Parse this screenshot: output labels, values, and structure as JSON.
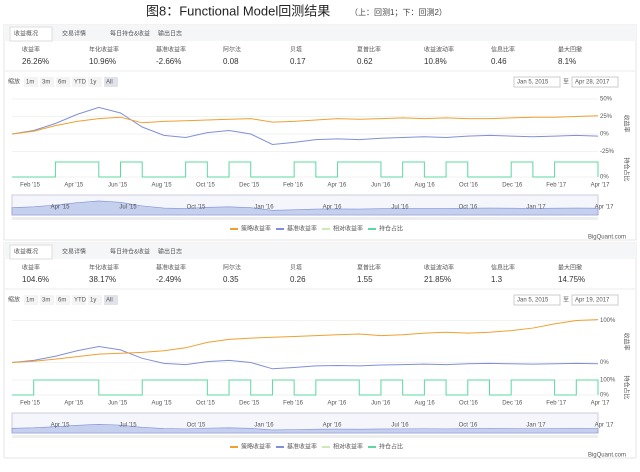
{
  "title": "图8：Functional Model回测结果",
  "subtitle": "（上：回测1；下：回测2）",
  "legend": [
    {
      "name": "策略收益率",
      "color": "#f0a030"
    },
    {
      "name": "基准收益率",
      "color": "#8090d8"
    },
    {
      "name": "相对收益率",
      "color": "#cfe8b8"
    },
    {
      "name": "持仓占比",
      "color": "#5cd8a0"
    }
  ],
  "panels": [
    {
      "tabs": [
        "收益概况",
        "交易详情",
        "每日持仓&收益",
        "输出日志"
      ],
      "stats": [
        {
          "label": "收益率",
          "value": "26.26%"
        },
        {
          "label": "年化收益率",
          "value": "10.96%"
        },
        {
          "label": "基准收益率",
          "value": "-2.66%"
        },
        {
          "label": "阿尔法",
          "value": "0.08"
        },
        {
          "label": "贝塔",
          "value": "0.17"
        },
        {
          "label": "夏普比率",
          "value": "0.62"
        },
        {
          "label": "收益波动率",
          "value": "10.8%"
        },
        {
          "label": "信息比率",
          "value": "0.46"
        },
        {
          "label": "最大回撤",
          "value": "8.1%"
        }
      ],
      "zoom_label": "缩放",
      "ranges": [
        "1m",
        "3m",
        "6m",
        "YTD",
        "1y",
        "All"
      ],
      "date_from": "Jan 5, 2015",
      "date_sep": "至",
      "date_to": "Apr 28, 2017",
      "ylim": [
        -30,
        60
      ],
      "yticks": [
        {
          "value": 50,
          "label": "50%"
        },
        {
          "value": 25,
          "label": "25%"
        },
        {
          "value": 0,
          "label": "0%"
        },
        {
          "value": -25,
          "label": "-25%"
        }
      ],
      "y_title": "收益率",
      "pos_title": "持仓占比",
      "pos_ylim": [
        0,
        100
      ],
      "pos_yticks": [
        {
          "value": 0,
          "label": "0%"
        }
      ],
      "strategy": [
        0,
        4,
        12,
        18,
        22,
        24,
        16,
        18,
        19,
        20,
        21,
        22,
        17,
        18,
        20,
        22,
        21,
        22,
        23,
        22,
        23,
        22,
        22,
        23,
        24,
        24,
        25,
        26
      ],
      "benchmark": [
        0,
        5,
        15,
        28,
        38,
        30,
        10,
        -2,
        -5,
        2,
        5,
        0,
        -15,
        -12,
        -8,
        -7,
        -8,
        -6,
        -5,
        -4,
        -5,
        -3,
        -2,
        -3,
        -4,
        -3,
        -2,
        -3
      ],
      "position": [
        0,
        0,
        100,
        100,
        0,
        100,
        0,
        0,
        100,
        0,
        100,
        0,
        0,
        100,
        0,
        100,
        100,
        0,
        100,
        0,
        100,
        0,
        0,
        100,
        0,
        100,
        100,
        0
      ],
      "xlabels": [
        "Feb '15",
        "Apr '15",
        "Jun '15",
        "Aug '15",
        "Oct '15",
        "Dec '15",
        "Feb '16",
        "Apr '16",
        "Jun '16",
        "Aug '16",
        "Oct '16",
        "Dec '16",
        "Feb '17",
        "Apr '17"
      ],
      "nav_labels": [
        "Apr '15",
        "Jul '15",
        "Oct '15",
        "Jan '16",
        "Apr '16",
        "Jul '16",
        "Oct '16",
        "Jan '17",
        "Apr '17"
      ],
      "credit": "BigQuant.com"
    },
    {
      "tabs": [
        "收益概况",
        "交易详情",
        "每日持仓&收益",
        "输出日志"
      ],
      "stats": [
        {
          "label": "收益率",
          "value": "104.6%"
        },
        {
          "label": "年化收益率",
          "value": "38.17%"
        },
        {
          "label": "基准收益率",
          "value": "-2.49%"
        },
        {
          "label": "阿尔法",
          "value": "0.35"
        },
        {
          "label": "贝塔",
          "value": "0.26"
        },
        {
          "label": "夏普比率",
          "value": "1.55"
        },
        {
          "label": "收益波动率",
          "value": "21.85%"
        },
        {
          "label": "信息比率",
          "value": "1.3"
        },
        {
          "label": "最大回撤",
          "value": "14.75%"
        }
      ],
      "zoom_label": "缩放",
      "ranges": [
        "1m",
        "3m",
        "6m",
        "YTD",
        "1y",
        "All"
      ],
      "date_from": "Jan 5, 2015",
      "date_sep": "至",
      "date_to": "Apr 19, 2017",
      "ylim": [
        -25,
        125
      ],
      "yticks": [
        {
          "value": 100,
          "label": "100%"
        },
        {
          "value": 0,
          "label": "0%"
        }
      ],
      "y_title": "收益率",
      "pos_title": "持仓占比",
      "pos_ylim": [
        0,
        100
      ],
      "pos_yticks": [
        {
          "value": 100,
          "label": "100%"
        },
        {
          "value": 0,
          "label": "0%"
        }
      ],
      "strategy": [
        0,
        3,
        8,
        14,
        20,
        22,
        24,
        28,
        35,
        48,
        55,
        58,
        60,
        62,
        64,
        66,
        68,
        64,
        66,
        70,
        72,
        70,
        72,
        76,
        82,
        92,
        100,
        102
      ],
      "benchmark": [
        0,
        5,
        15,
        28,
        38,
        30,
        10,
        -2,
        -5,
        2,
        5,
        0,
        -15,
        -12,
        -8,
        -7,
        -8,
        -6,
        -5,
        -4,
        -5,
        -3,
        -2,
        -3,
        -4,
        -3,
        -2,
        -3
      ],
      "position": [
        0,
        100,
        100,
        100,
        0,
        0,
        100,
        100,
        100,
        0,
        100,
        0,
        100,
        0,
        100,
        100,
        0,
        100,
        0,
        100,
        0,
        100,
        0,
        100,
        100,
        0,
        100,
        0
      ],
      "xlabels": [
        "Feb '15",
        "Apr '15",
        "Jun '15",
        "Aug '15",
        "Oct '15",
        "Dec '15",
        "Feb '16",
        "Apr '16",
        "Jun '16",
        "Aug '16",
        "Oct '16",
        "Dec '16",
        "Feb '17",
        "Apr '17"
      ],
      "nav_labels": [
        "Apr '15",
        "Jul '15",
        "Oct '15",
        "Jan '16",
        "Apr '16",
        "Jul '16",
        "Oct '16",
        "Jan '17",
        "Apr '17"
      ],
      "credit": "BigQuant.com"
    }
  ]
}
